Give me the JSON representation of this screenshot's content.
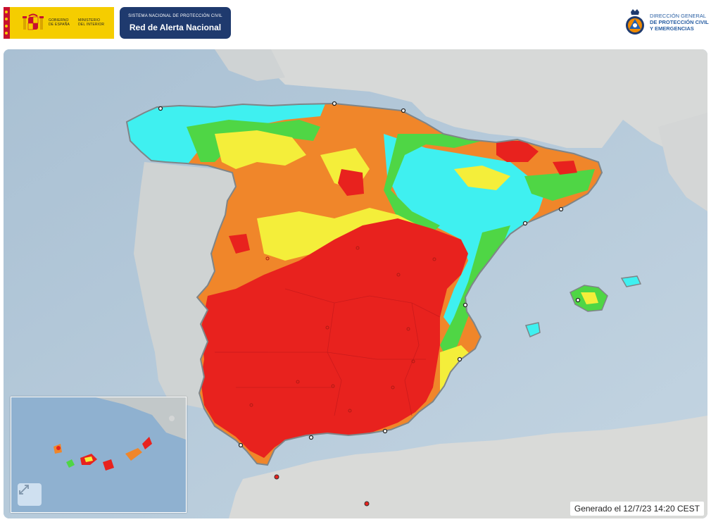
{
  "header": {
    "gov_logo": {
      "line1": "GOBIERNO",
      "line2": "DE ESPAÑA",
      "line3": "MINISTERIO",
      "line4": "DEL INTERIOR"
    },
    "system": {
      "subtitle": "SISTEMA NACIONAL DE PROTECCIÓN CIVIL",
      "title": "Red de Alerta Nacional"
    },
    "dg": {
      "line1": "DIRECCIÓN GENERAL",
      "line2": "DE PROTECCIÓN CIVIL",
      "line3": "Y EMERGENCIAS"
    }
  },
  "map": {
    "generated_text": "Generado el 12/7/23 14:20 CEST",
    "legend_colors": {
      "alert_red": "#e8221e",
      "alert_orange": "#f0862a",
      "alert_yellow": "#f4ee3a",
      "alert_green": "#4fd645",
      "alert_cyan": "#3ff0f0"
    },
    "inset": {
      "expand_icon": "expand-arrows-icon"
    }
  }
}
